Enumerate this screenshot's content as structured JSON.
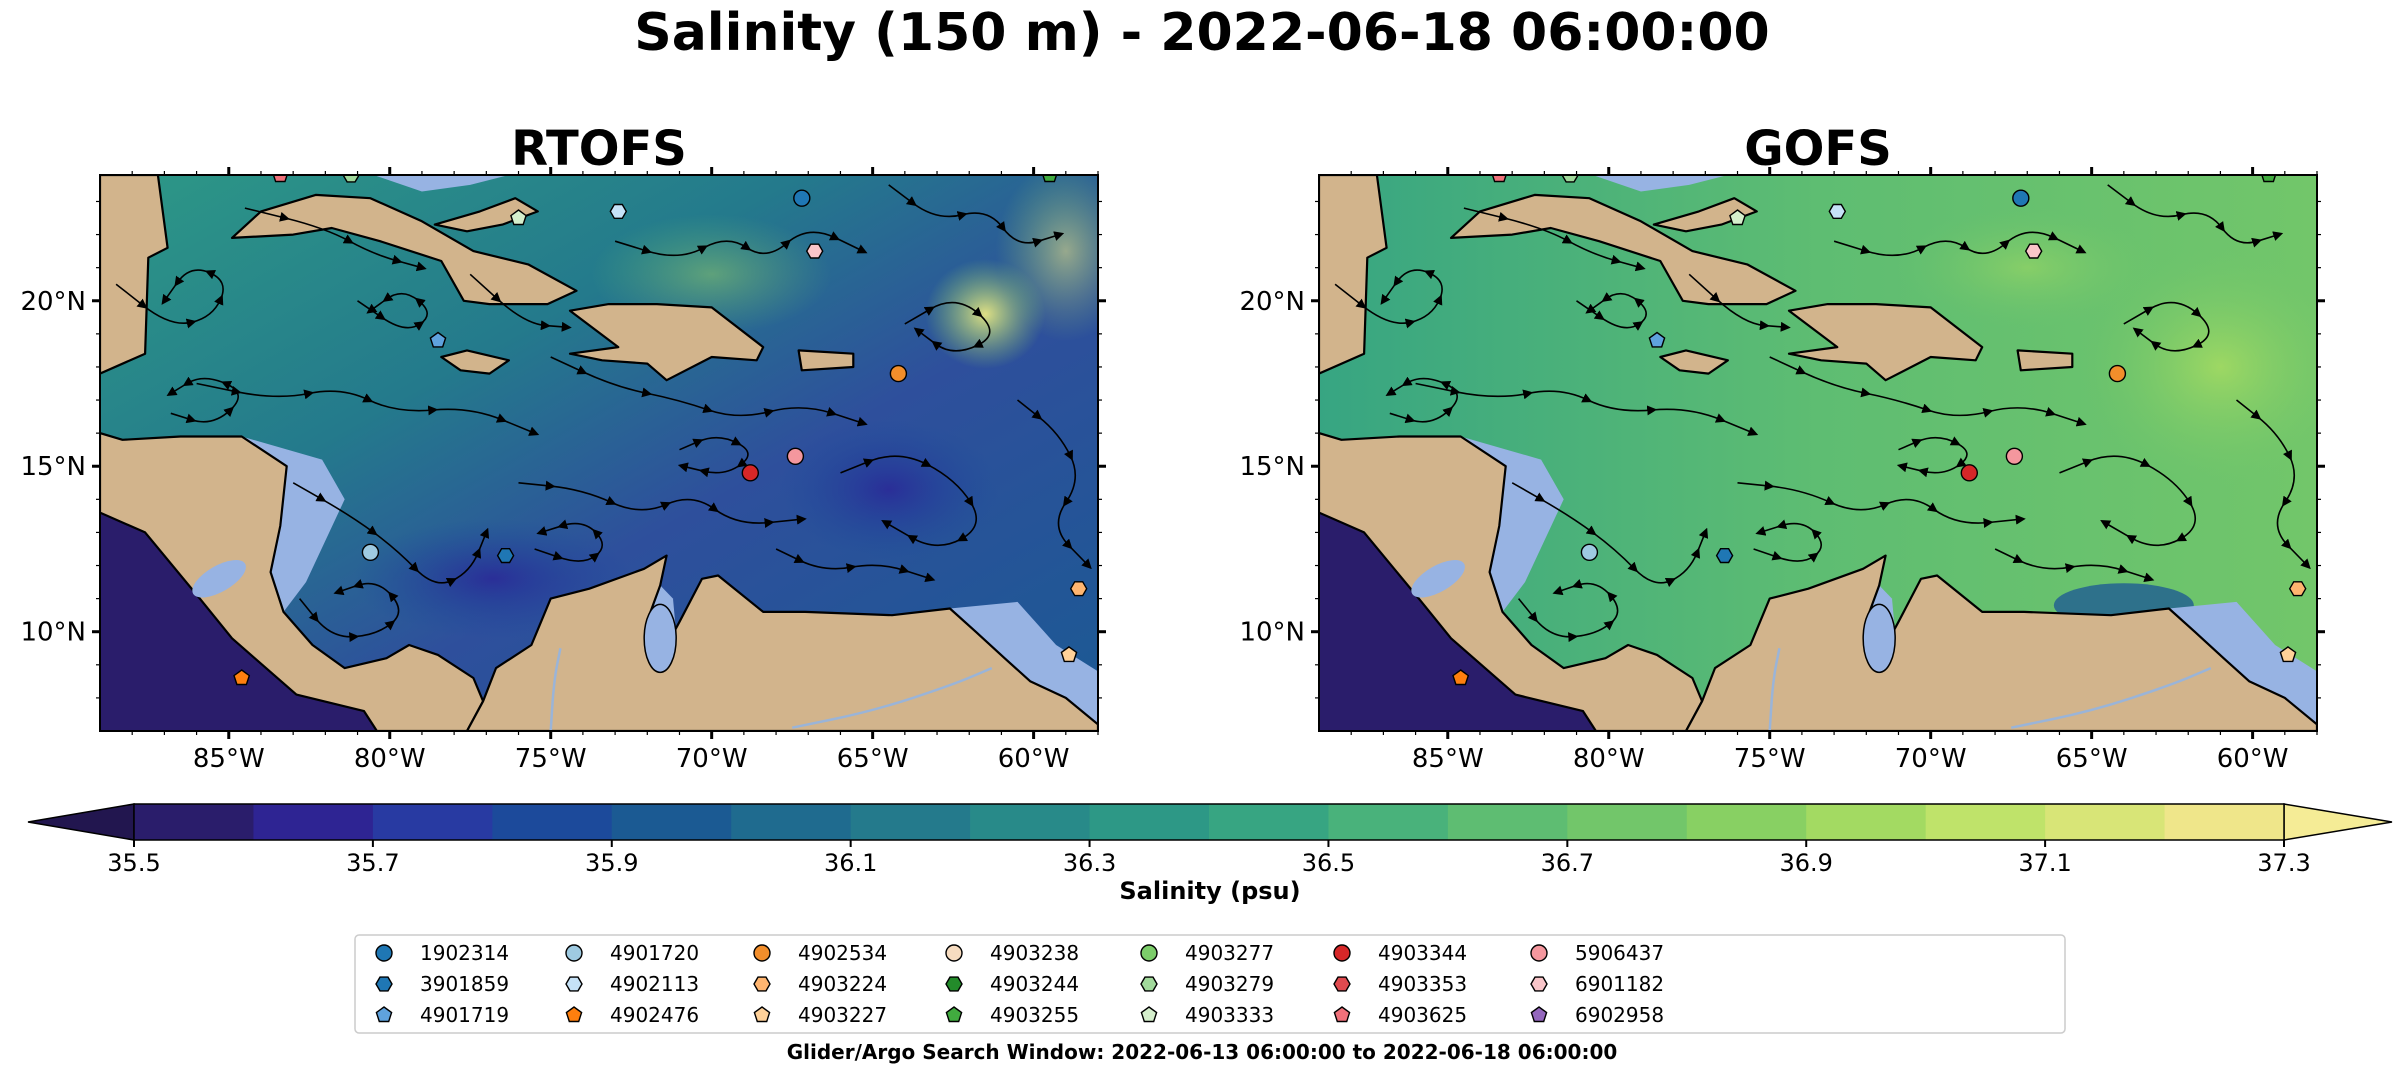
{
  "chart_data": {
    "type": "heatmap",
    "title": "Salinity (150 m) - 2022-06-18 06:00:00",
    "panels": [
      {
        "title": "RTOFS",
        "salinity_character": "fresher (35.6-36.3 psu in central Caribbean)"
      },
      {
        "title": "GOFS",
        "salinity_character": "saltier (36.4-36.9 psu across basin)"
      }
    ],
    "x_ticks": [
      "85°W",
      "80°W",
      "75°W",
      "70°W",
      "65°W",
      "60°W"
    ],
    "x_tick_values": [
      -85,
      -80,
      -75,
      -70,
      -65,
      -60
    ],
    "y_ticks": [
      "20°N",
      "15°N",
      "10°N"
    ],
    "y_tick_values": [
      20,
      15,
      10
    ],
    "xlim": [
      -89,
      -58
    ],
    "ylim": [
      7,
      23.8
    ],
    "colorbar": {
      "label": "Salinity (psu)",
      "ticks": [
        "35.5",
        "35.7",
        "35.9",
        "36.1",
        "36.3",
        "36.5",
        "36.7",
        "36.9",
        "37.1",
        "37.3"
      ],
      "range": [
        35.5,
        37.3
      ],
      "step": 0.1,
      "extend": "both",
      "colors": [
        "#2a1d6b",
        "#2e2493",
        "#283aa2",
        "#1c4a9b",
        "#1b5a93",
        "#1f6b8f",
        "#247a8c",
        "#288a89",
        "#2d9886",
        "#37a582",
        "#49b27b",
        "#5ebd72",
        "#72c66a",
        "#88d063",
        "#a3da62",
        "#bfe36a",
        "#d8e577",
        "#efe68a"
      ]
    },
    "legend": {
      "placement": "bottom-center",
      "entries": [
        {
          "label": "1902314",
          "marker": "circle",
          "color": "#1f77b4"
        },
        {
          "label": "3901859",
          "marker": "hexagon",
          "color": "#1f77b4"
        },
        {
          "label": "4901719",
          "marker": "pentagon",
          "color": "#5fa2dd"
        },
        {
          "label": "4901720",
          "marker": "circle",
          "color": "#9ecae1"
        },
        {
          "label": "4902113",
          "marker": "hexagon",
          "color": "#c6e2f7"
        },
        {
          "label": "4902476",
          "marker": "pentagon",
          "color": "#ff7f0e"
        },
        {
          "label": "4902534",
          "marker": "circle",
          "color": "#f28e2b"
        },
        {
          "label": "4903224",
          "marker": "hexagon",
          "color": "#ffb570"
        },
        {
          "label": "4903227",
          "marker": "pentagon",
          "color": "#ffd199"
        },
        {
          "label": "4903238",
          "marker": "circle",
          "color": "#f7dcc0"
        },
        {
          "label": "4903244",
          "marker": "hexagon",
          "color": "#238b2a"
        },
        {
          "label": "4903255",
          "marker": "pentagon",
          "color": "#41ab3f"
        },
        {
          "label": "4903277",
          "marker": "circle",
          "color": "#7ccd6a"
        },
        {
          "label": "4903279",
          "marker": "hexagon",
          "color": "#a1d99b"
        },
        {
          "label": "4903333",
          "marker": "pentagon",
          "color": "#d5efcc"
        },
        {
          "label": "4903344",
          "marker": "circle",
          "color": "#d62728"
        },
        {
          "label": "4903353",
          "marker": "hexagon",
          "color": "#e04a4f"
        },
        {
          "label": "4903625",
          "marker": "pentagon",
          "color": "#f0717a"
        },
        {
          "label": "5906437",
          "marker": "circle",
          "color": "#f4979e"
        },
        {
          "label": "6901182",
          "marker": "hexagon",
          "color": "#f9c5c9"
        },
        {
          "label": "6902958",
          "marker": "pentagon",
          "color": "#9467bd"
        }
      ]
    },
    "observations": [
      {
        "id": "4903625",
        "lon": -83.4,
        "lat": 23.8
      },
      {
        "id": "4903279",
        "lon": -81.2,
        "lat": 23.8
      },
      {
        "id": "4903333",
        "lon": -76.0,
        "lat": 22.5
      },
      {
        "id": "4902113",
        "lon": -72.9,
        "lat": 22.7
      },
      {
        "id": "1902314",
        "lon": -67.2,
        "lat": 23.1
      },
      {
        "id": "6901182",
        "lon": -66.8,
        "lat": 21.5
      },
      {
        "id": "4903255",
        "lon": -59.5,
        "lat": 23.8
      },
      {
        "id": "4901719",
        "lon": -78.5,
        "lat": 18.8
      },
      {
        "id": "4902534",
        "lon": -64.2,
        "lat": 17.8
      },
      {
        "id": "5906437",
        "lon": -67.4,
        "lat": 15.3
      },
      {
        "id": "4903344",
        "lon": -68.8,
        "lat": 14.8
      },
      {
        "id": "4901720",
        "lon": -80.6,
        "lat": 12.4
      },
      {
        "id": "3901859",
        "lon": -76.4,
        "lat": 12.3
      },
      {
        "id": "4903224",
        "lon": -58.6,
        "lat": 11.3
      },
      {
        "id": "4902476",
        "lon": -84.6,
        "lat": 8.6
      },
      {
        "id": "4903227",
        "lon": -58.9,
        "lat": 9.3
      }
    ]
  },
  "footer": "Glider/Argo Search Window: 2022-06-13 06:00:00 to 2022-06-18 06:00:00",
  "colors": {
    "land": "#d2b48c",
    "shallow": "#97b3e3",
    "coast": "#000000",
    "river": "#9ab4d8",
    "deep_pacific": "#2a1d6b"
  }
}
